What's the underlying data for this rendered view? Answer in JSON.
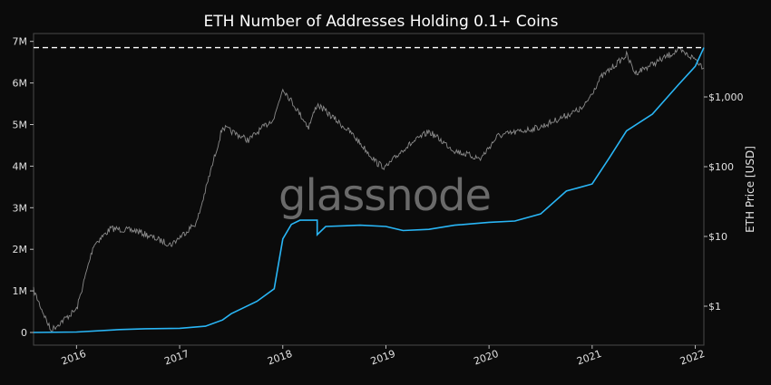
{
  "chart_data": {
    "type": "line",
    "title": "ETH Number of Addresses Holding 0.1+ Coins",
    "watermark": "glassnode",
    "xlabel": "",
    "ylabel_left": "",
    "ylabel_right": "ETH Price [USD]",
    "x_ticks": [
      "2016",
      "2017",
      "2018",
      "2019",
      "2020",
      "2021",
      "2022"
    ],
    "y_left_ticks": [
      "0",
      "1M",
      "2M",
      "3M",
      "4M",
      "5M",
      "6M",
      "7M"
    ],
    "y_left_range": [
      -0.2,
      7.0
    ],
    "y_left_unit": "millions",
    "y_right_ticks": [
      "$1",
      "$10",
      "$100",
      "$1,000"
    ],
    "y_right_scale": "log",
    "x_range": [
      "2015-08",
      "2022-02"
    ],
    "grid": false,
    "ath_line": {
      "value_millions": 6.85,
      "style": "dashed",
      "color": "#ffffff"
    },
    "series": [
      {
        "axis": "left",
        "color": "#29b6f6",
        "points": [
          [
            "2015-08",
            0.0
          ],
          [
            "2016-01",
            0.01
          ],
          [
            "2016-06",
            0.07
          ],
          [
            "2016-09",
            0.09
          ],
          [
            "2017-01",
            0.1
          ],
          [
            "2017-04",
            0.15
          ],
          [
            "2017-06",
            0.3
          ],
          [
            "2017-07",
            0.45
          ],
          [
            "2017-10",
            0.75
          ],
          [
            "2017-12",
            1.05
          ],
          [
            "2018-01",
            2.25
          ],
          [
            "2018-02",
            2.6
          ],
          [
            "2018-03",
            2.7
          ],
          [
            "2018-05",
            2.7
          ],
          [
            "2018-05",
            2.35
          ],
          [
            "2018-06",
            2.55
          ],
          [
            "2018-10",
            2.58
          ],
          [
            "2019-01",
            2.55
          ],
          [
            "2019-03",
            2.45
          ],
          [
            "2019-06",
            2.48
          ],
          [
            "2019-09",
            2.58
          ],
          [
            "2020-01",
            2.65
          ],
          [
            "2020-04",
            2.68
          ],
          [
            "2020-07",
            2.85
          ],
          [
            "2020-10",
            3.4
          ],
          [
            "2021-01",
            3.57
          ],
          [
            "2021-03",
            4.2
          ],
          [
            "2021-05",
            4.85
          ],
          [
            "2021-08",
            5.25
          ],
          [
            "2021-11",
            5.95
          ],
          [
            "2022-01",
            6.4
          ],
          [
            "2022-02",
            6.85
          ]
        ]
      },
      {
        "axis": "right",
        "color": "#8a8a8a",
        "points": [
          [
            "2015-08",
            1.7
          ],
          [
            "2015-10",
            0.45
          ],
          [
            "2016-01",
            0.9
          ],
          [
            "2016-03",
            7.6
          ],
          [
            "2016-05",
            13
          ],
          [
            "2016-08",
            12
          ],
          [
            "2016-12",
            7.6
          ],
          [
            "2017-03",
            16
          ],
          [
            "2017-06",
            370
          ],
          [
            "2017-09",
            240
          ],
          [
            "2017-12",
            500
          ],
          [
            "2018-01",
            1340
          ],
          [
            "2018-04",
            370
          ],
          [
            "2018-05",
            790
          ],
          [
            "2018-09",
            300
          ],
          [
            "2018-12",
            112
          ],
          [
            "2019-01",
            97
          ],
          [
            "2019-03",
            178
          ],
          [
            "2019-06",
            320
          ],
          [
            "2019-09",
            170
          ],
          [
            "2019-12",
            130
          ],
          [
            "2020-02",
            275
          ],
          [
            "2020-07",
            370
          ],
          [
            "2020-12",
            700
          ],
          [
            "2021-02",
            1900
          ],
          [
            "2021-05",
            4000
          ],
          [
            "2021-06",
            2200
          ],
          [
            "2021-09",
            3400
          ],
          [
            "2021-11",
            4700
          ],
          [
            "2022-01",
            3500
          ],
          [
            "2022-02",
            2600
          ]
        ]
      }
    ]
  }
}
